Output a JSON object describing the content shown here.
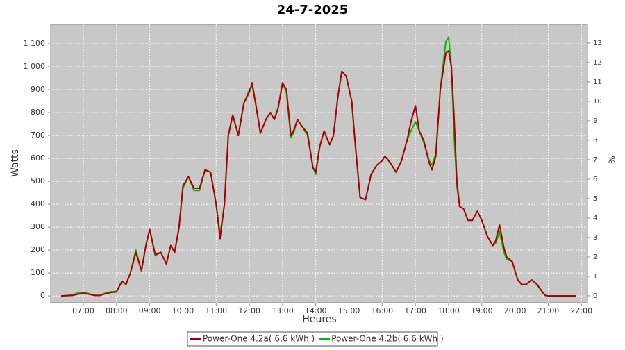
{
  "chart_data": {
    "type": "line",
    "title": "24-7-2025",
    "xlabel": "Heures",
    "ylabel": "Watts",
    "y2label": "%",
    "x": [
      "06:20",
      "06:40",
      "06:50",
      "07:00",
      "07:10",
      "07:20",
      "07:30",
      "07:40",
      "07:50",
      "08:00",
      "08:10",
      "08:17",
      "08:25",
      "08:35",
      "08:45",
      "08:53",
      "09:00",
      "09:10",
      "09:20",
      "09:30",
      "09:38",
      "09:45",
      "09:53",
      "10:00",
      "10:10",
      "10:20",
      "10:30",
      "10:40",
      "10:50",
      "11:00",
      "11:07",
      "11:15",
      "11:22",
      "11:30",
      "11:40",
      "11:50",
      "12:00",
      "12:05",
      "12:12",
      "12:20",
      "12:30",
      "12:38",
      "12:45",
      "12:52",
      "13:00",
      "13:07",
      "13:15",
      "13:20",
      "13:27",
      "13:35",
      "13:45",
      "13:55",
      "14:00",
      "14:07",
      "14:15",
      "14:25",
      "14:32",
      "14:40",
      "14:47",
      "14:55",
      "15:05",
      "15:10",
      "15:20",
      "15:30",
      "15:40",
      "15:50",
      "16:00",
      "16:05",
      "16:15",
      "16:25",
      "16:35",
      "16:45",
      "16:52",
      "17:00",
      "17:07",
      "17:15",
      "17:25",
      "17:30",
      "17:37",
      "17:45",
      "17:55",
      "18:00",
      "18:05",
      "18:10",
      "18:15",
      "18:20",
      "18:27",
      "18:35",
      "18:43",
      "18:52",
      "19:00",
      "19:10",
      "19:20",
      "19:25",
      "19:32",
      "19:40",
      "19:45",
      "19:55",
      "20:05",
      "20:12",
      "20:20",
      "20:30",
      "20:40",
      "20:50",
      "20:55",
      "21:00",
      "21:50"
    ],
    "series": [
      {
        "name": "Power-One 4.2a( 6,6 kWh )",
        "color": "#aa0000",
        "values": [
          0,
          2,
          8,
          12,
          8,
          2,
          2,
          10,
          15,
          18,
          65,
          50,
          100,
          190,
          110,
          220,
          290,
          180,
          190,
          140,
          220,
          190,
          300,
          480,
          520,
          470,
          470,
          550,
          540,
          400,
          250,
          400,
          700,
          790,
          700,
          840,
          890,
          930,
          830,
          710,
          770,
          800,
          770,
          820,
          930,
          900,
          700,
          720,
          770,
          740,
          710,
          560,
          540,
          650,
          720,
          660,
          700,
          870,
          980,
          960,
          850,
          700,
          430,
          420,
          530,
          570,
          590,
          610,
          580,
          540,
          590,
          680,
          760,
          830,
          720,
          680,
          580,
          550,
          610,
          900,
          1060,
          1070,
          1000,
          780,
          500,
          390,
          380,
          330,
          330,
          370,
          330,
          260,
          220,
          240,
          310,
          210,
          170,
          150,
          70,
          50,
          50,
          70,
          50,
          15,
          2,
          0,
          0
        ]
      },
      {
        "name": "Power-One 4.2b( 6,6 kWh )",
        "color": "#00bb00",
        "values": [
          0,
          4,
          12,
          16,
          10,
          3,
          2,
          12,
          18,
          20,
          65,
          50,
          100,
          200,
          110,
          220,
          290,
          175,
          190,
          140,
          220,
          190,
          300,
          470,
          520,
          460,
          460,
          550,
          540,
          400,
          270,
          400,
          700,
          790,
          700,
          840,
          900,
          920,
          830,
          710,
          770,
          800,
          770,
          820,
          930,
          890,
          690,
          710,
          770,
          740,
          700,
          560,
          530,
          650,
          720,
          660,
          700,
          870,
          980,
          960,
          850,
          700,
          430,
          420,
          530,
          570,
          590,
          610,
          580,
          540,
          590,
          680,
          720,
          760,
          720,
          670,
          590,
          570,
          620,
          900,
          1110,
          1130,
          1000,
          700,
          480,
          390,
          380,
          330,
          330,
          370,
          330,
          260,
          220,
          230,
          280,
          190,
          160,
          150,
          70,
          50,
          50,
          70,
          50,
          15,
          2,
          0,
          0
        ]
      }
    ],
    "xlim": [
      "06:01",
      "22:11"
    ],
    "xticks": [
      "07:00",
      "08:00",
      "09:00",
      "10:00",
      "11:00",
      "12:00",
      "13:00",
      "14:00",
      "15:00",
      "16:00",
      "17:00",
      "18:00",
      "19:00",
      "20:00",
      "21:00",
      "22:00"
    ],
    "ylim": [
      -30,
      1185
    ],
    "yticks": [
      0,
      100,
      200,
      300,
      400,
      500,
      600,
      700,
      800,
      900,
      {
        "value": 1000,
        "label": "1 000"
      },
      {
        "value": 1100,
        "label": "1 100"
      }
    ],
    "y2lim": [
      -0.36,
      13.96
    ],
    "y2ticks": [
      0,
      1,
      2,
      3,
      4,
      5,
      6,
      7,
      8,
      9,
      10,
      11,
      12,
      13
    ],
    "grid": true,
    "legend": "bottom"
  }
}
